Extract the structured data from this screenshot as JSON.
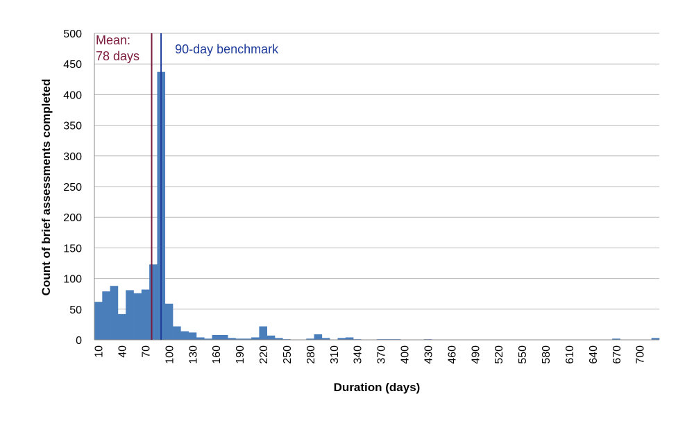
{
  "chart_data": {
    "type": "bar",
    "xlabel": "Duration (days)",
    "ylabel": "Count of brief assessments completed",
    "ylim": [
      0,
      500
    ],
    "yticks": [
      "0",
      "50",
      "100",
      "150",
      "200",
      "250",
      "300",
      "350",
      "400",
      "450",
      "500"
    ],
    "xticks": [
      "10",
      "40",
      "70",
      "100",
      "130",
      "160",
      "190",
      "220",
      "250",
      "280",
      "310",
      "340",
      "370",
      "400",
      "430",
      "460",
      "490",
      "520",
      "550",
      "580",
      "610",
      "640",
      "670",
      "700"
    ],
    "bin_width_days": 10,
    "grid": true,
    "bar_color": "#4a7ebb",
    "x": [
      10,
      20,
      30,
      40,
      50,
      60,
      70,
      80,
      90,
      100,
      110,
      120,
      130,
      140,
      150,
      160,
      170,
      180,
      190,
      200,
      210,
      220,
      230,
      240,
      250,
      260,
      270,
      280,
      290,
      300,
      310,
      320,
      330,
      340,
      350,
      360,
      370,
      380,
      390,
      400,
      410,
      420,
      430,
      440,
      450,
      460,
      470,
      480,
      490,
      500,
      510,
      520,
      530,
      540,
      550,
      560,
      570,
      580,
      590,
      600,
      610,
      620,
      630,
      640,
      650,
      660,
      670,
      680,
      690,
      700,
      710,
      720
    ],
    "values": [
      62,
      79,
      88,
      42,
      81,
      76,
      82,
      123,
      437,
      59,
      22,
      14,
      12,
      4,
      2,
      8,
      8,
      3,
      2,
      2,
      4,
      22,
      7,
      3,
      1,
      0,
      0,
      2,
      9,
      3,
      0,
      3,
      4,
      1,
      0,
      0,
      1,
      1,
      1,
      0,
      0,
      0,
      1,
      0,
      0,
      0,
      0,
      0,
      0,
      0,
      0,
      0,
      0,
      0,
      0,
      0,
      0,
      0,
      0,
      0,
      0,
      0,
      0,
      0,
      0,
      0,
      2,
      0,
      0,
      0,
      0,
      3
    ],
    "annotations": [
      {
        "label": "Mean:",
        "label2": "78 days",
        "x": 78,
        "color": "#7b1a3a"
      },
      {
        "label": "90-day benchmark",
        "x": 90,
        "color": "#1f3b9a"
      }
    ]
  }
}
